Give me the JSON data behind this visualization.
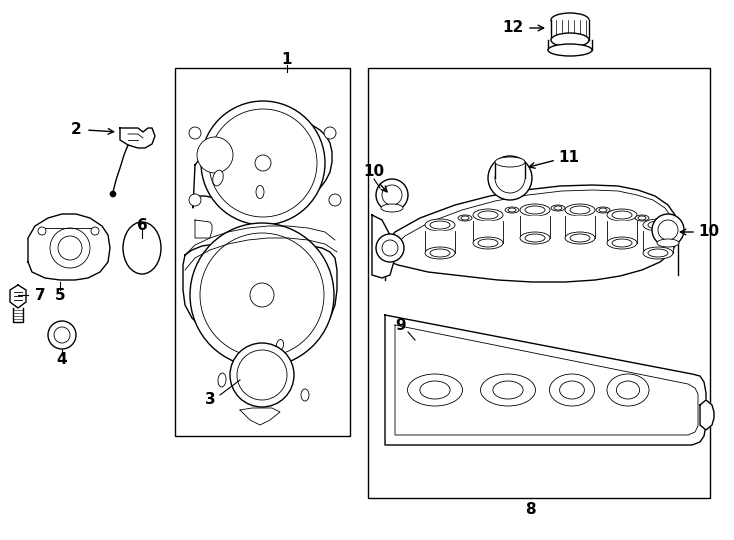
{
  "bg_color": "#ffffff",
  "line_color": "#000000",
  "lw": 1.0,
  "tlw": 0.6,
  "fig_w": 7.34,
  "fig_h": 5.4,
  "dpi": 100
}
